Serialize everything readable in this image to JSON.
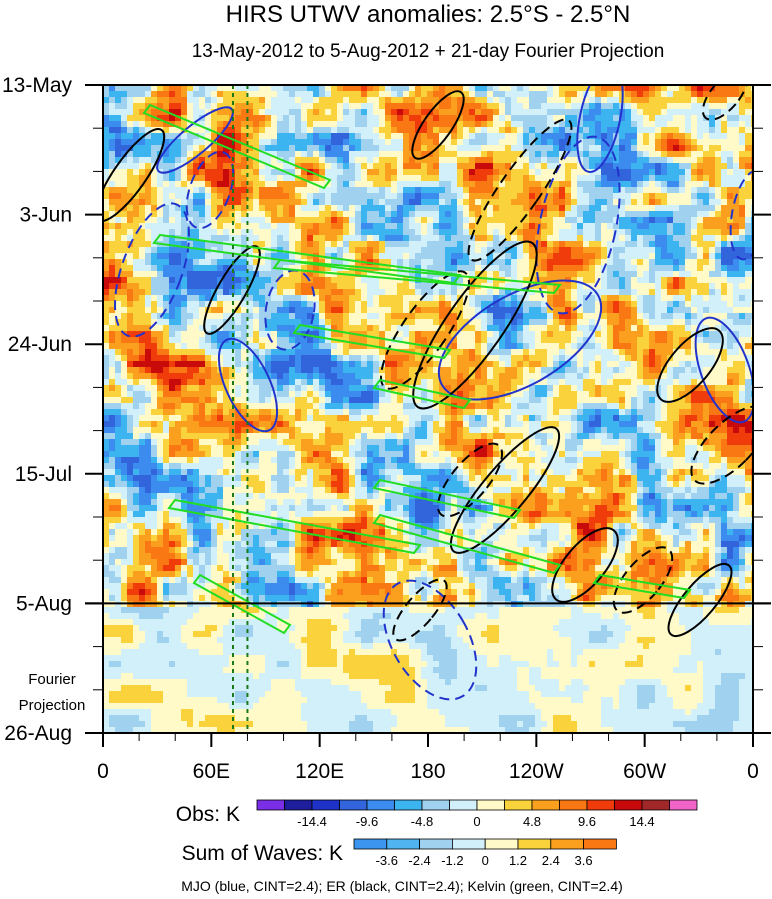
{
  "chart_data": {
    "type": "heatmap",
    "title": "HIRS UTWV anomalies: 2.5°S - 2.5°N",
    "subtitle": "13-May-2012 to 5-Aug-2012 + 21-day Fourier Projection",
    "x_ticks": [
      {
        "label": "0",
        "lon": 0
      },
      {
        "label": "60E",
        "lon": 60
      },
      {
        "label": "120E",
        "lon": 120
      },
      {
        "label": "180",
        "lon": 180
      },
      {
        "label": "120W",
        "lon": 240
      },
      {
        "label": "60W",
        "lon": 300
      },
      {
        "label": "0",
        "lon": 360
      }
    ],
    "xlim": [
      0,
      360
    ],
    "y_ticks": [
      {
        "label": "13-May",
        "day": 0
      },
      {
        "label": "3-Jun",
        "day": 21
      },
      {
        "label": "24-Jun",
        "day": 42
      },
      {
        "label": "15-Jul",
        "day": 63
      },
      {
        "label": "5-Aug",
        "day": 84
      },
      {
        "label": "26-Aug",
        "day": 105
      }
    ],
    "ylim_days": [
      0,
      105
    ],
    "obs_end_day": 84,
    "projection_label_line1": "Fourier",
    "projection_label_line2": "Projection",
    "reference_lines_lon": [
      72,
      80
    ],
    "obs_colorbar": {
      "title": "Obs: K",
      "colors": [
        "#7a2ee6",
        "#1e1e9c",
        "#1e32c8",
        "#3264dc",
        "#3c8cf0",
        "#3cb4f0",
        "#a0d2f0",
        "#d2f0fa",
        "#fffac8",
        "#fad23c",
        "#faa01e",
        "#fa7814",
        "#f03c0a",
        "#c80a0a",
        "#a02828",
        "#f064c8"
      ],
      "tick_labels": [
        "-14.4",
        "-9.6",
        "-4.8",
        "0",
        "4.8",
        "9.6",
        "14.4"
      ],
      "tick_positions": [
        2,
        4,
        6,
        8,
        10,
        12,
        14
      ]
    },
    "waves_colorbar": {
      "title": "Sum of Waves: K",
      "colors": [
        "#3c96f0",
        "#50b4f0",
        "#a0d2f0",
        "#d2f0fa",
        "#fffac8",
        "#fad23c",
        "#faa01e",
        "#fa7814"
      ],
      "tick_labels": [
        "-3.6",
        "-2.4",
        "-1.2",
        "0",
        "1.2",
        "2.4",
        "3.6"
      ],
      "tick_positions": [
        1,
        2,
        3,
        4,
        5,
        6,
        7
      ]
    },
    "legend_text": "MJO (blue, CINT=2.4); ER (black, CINT=2.4); Kelvin (green, CINT=2.4)",
    "wave_contours": {
      "mjo": {
        "color": "#2233cc",
        "cint": 2.4
      },
      "er": {
        "color": "#000000",
        "cint": 2.4
      },
      "kelvin": {
        "color": "#22dd22",
        "cint": 2.4
      }
    }
  }
}
